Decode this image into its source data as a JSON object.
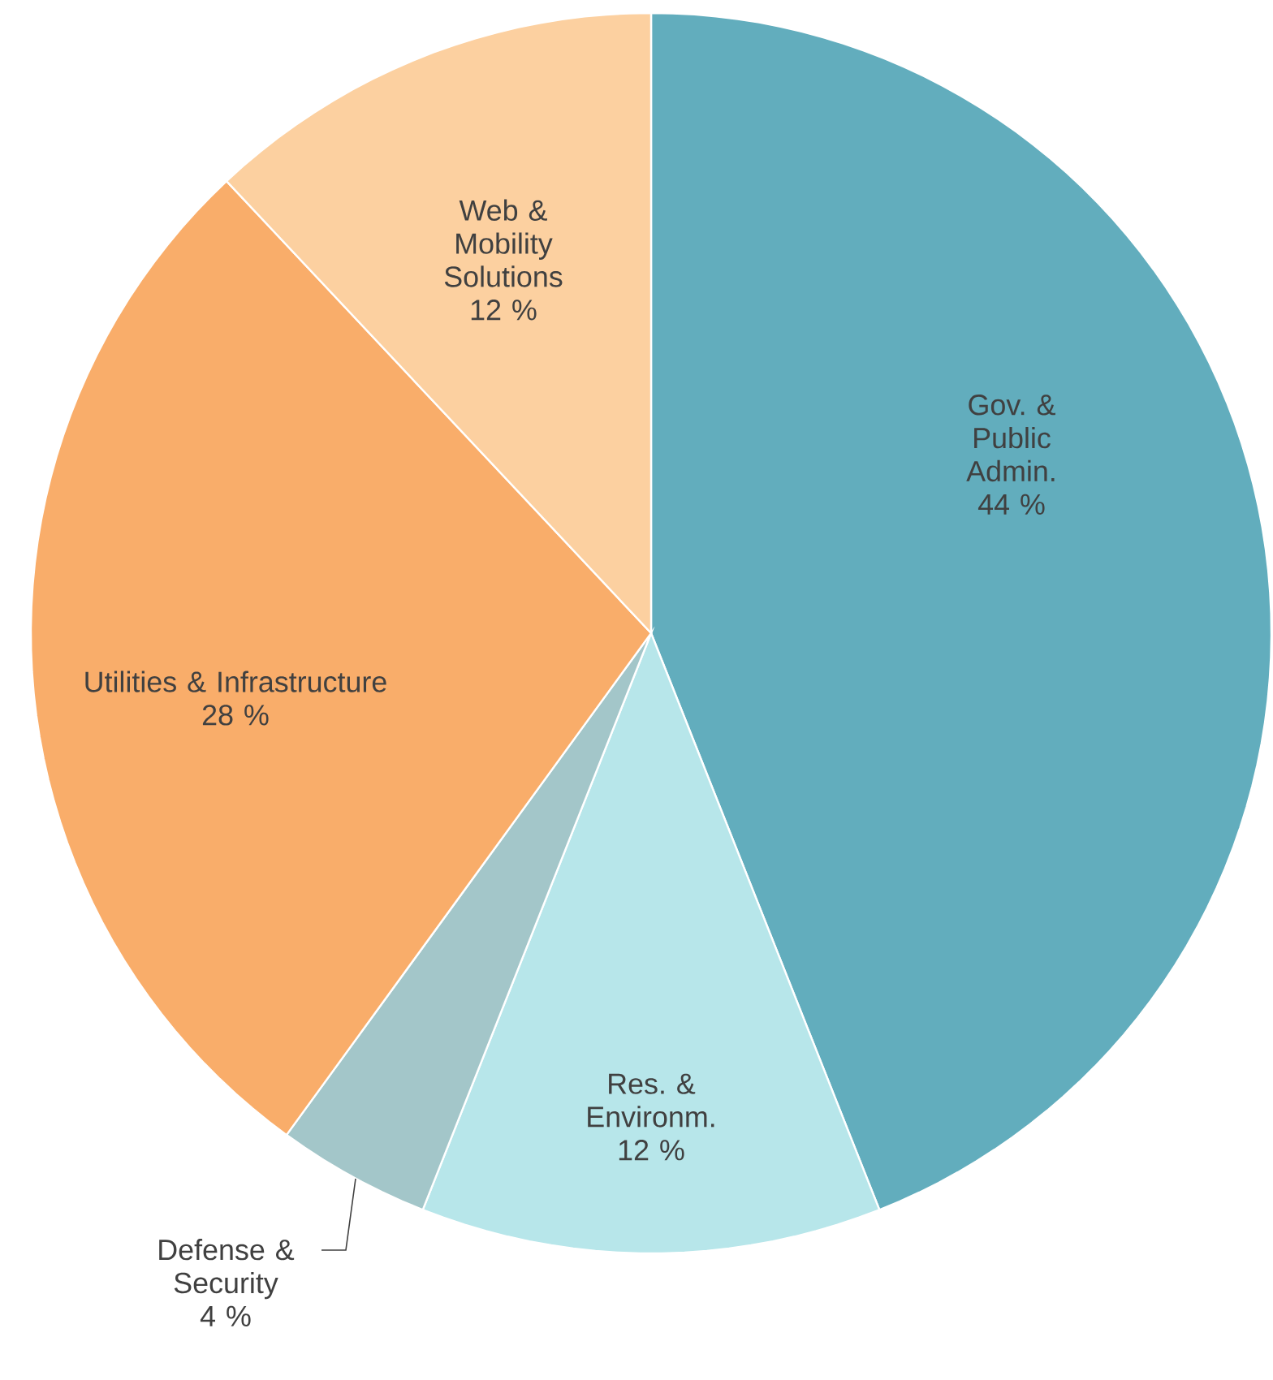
{
  "chart_data": {
    "type": "pie",
    "categories": [
      "Gov. & Public Admin.",
      "Res. & Environm.",
      "Defense & Security",
      "Utilities & Infrastructure",
      "Web & Mobility Solutions"
    ],
    "values": [
      44,
      12,
      4,
      28,
      12
    ],
    "value_labels": [
      "44 %",
      "12 %",
      "4 %",
      "28 %",
      "12 %"
    ],
    "colors": [
      "#62adbd",
      "#b7e6ea",
      "#a3c6c9",
      "#f9ad6a",
      "#fcd0a0"
    ]
  }
}
